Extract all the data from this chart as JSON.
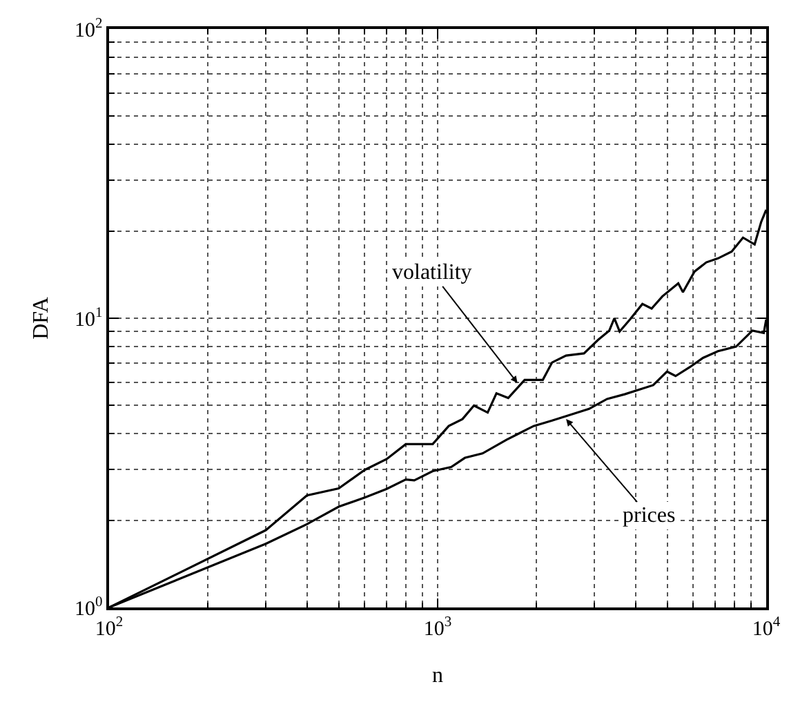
{
  "chart_data": {
    "type": "line",
    "xlabel": "n",
    "ylabel": "DFA",
    "log": "xy",
    "grid": true,
    "marker": "none",
    "line_style": "solid",
    "xlim": [
      100,
      10000
    ],
    "ylim": [
      1,
      100
    ],
    "xticks": [
      {
        "value": 100,
        "label": "10$^{2}$"
      },
      {
        "value": 1000,
        "label": "10$^{3}$"
      },
      {
        "value": 10000,
        "label": "10$^{4}$"
      }
    ],
    "yticks": [
      {
        "value": 1,
        "label": "10$^{0}$"
      },
      {
        "value": 10,
        "label": "10$^{1}$"
      },
      {
        "value": 100,
        "label": "10$^{2}$"
      }
    ],
    "series": [
      {
        "color": "#000000",
        "x": [
          100,
          300,
          400,
          500,
          600,
          700,
          800,
          849,
          966,
          1081,
          1190,
          1290,
          1420,
          1510,
          1640,
          1840,
          2090,
          2230,
          2460,
          2790,
          3080,
          3330,
          3450,
          3580,
          3850,
          4200,
          4480,
          4830,
          5400,
          5580,
          6050,
          6570,
          7130,
          7850,
          8500,
          9220,
          9650,
          10000
        ],
        "values": [
          1,
          1.85,
          2.44,
          2.58,
          2.99,
          3.26,
          3.67,
          3.67,
          3.67,
          4.24,
          4.48,
          4.99,
          4.72,
          5.5,
          5.3,
          6.12,
          6.12,
          7.03,
          7.43,
          7.56,
          8.42,
          9.06,
          10.0,
          9.0,
          9.9,
          11.2,
          10.8,
          11.9,
          13.2,
          12.3,
          14.5,
          15.6,
          16.1,
          17.0,
          19.0,
          18.0,
          21.5,
          23.7
        ]
      },
      {
        "color": "#000000",
        "x": [
          100,
          300,
          400,
          500,
          600,
          700,
          800,
          849,
          966,
          1100,
          1210,
          1370,
          1620,
          1780,
          1960,
          2230,
          2540,
          2890,
          3280,
          3710,
          4530,
          4990,
          5300,
          5860,
          6420,
          7130,
          8100,
          9080,
          9830,
          10000
        ],
        "values": [
          1,
          1.66,
          1.94,
          2.23,
          2.4,
          2.57,
          2.77,
          2.75,
          2.96,
          3.06,
          3.29,
          3.41,
          3.8,
          4.01,
          4.24,
          4.43,
          4.64,
          4.86,
          5.26,
          5.46,
          5.87,
          6.54,
          6.31,
          6.78,
          7.29,
          7.69,
          7.98,
          9.06,
          8.89,
          9.9
        ]
      }
    ],
    "annotations": [
      {
        "text": "volatility",
        "x": 1750,
        "y": 5.97
      },
      {
        "text": "prices",
        "x": 2460,
        "y": 4.48
      }
    ]
  }
}
